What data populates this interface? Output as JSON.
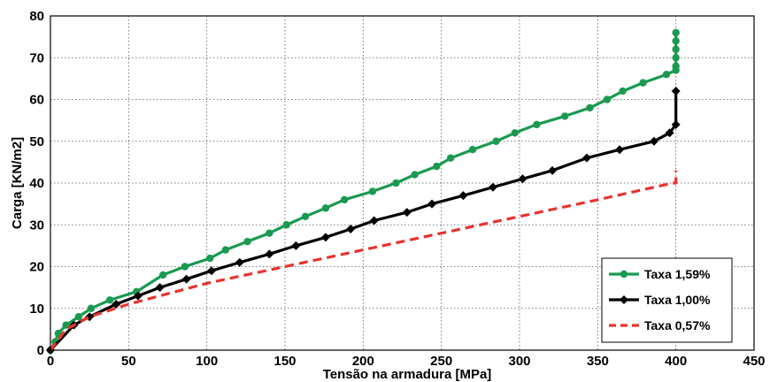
{
  "chart_data": {
    "type": "line",
    "xlabel": "Tensão na armadura [MPa]",
    "ylabel": "Carga [KN/m2]",
    "xlim": [
      0,
      450
    ],
    "ylim": [
      0,
      80
    ],
    "xticks": [
      0,
      50,
      100,
      150,
      200,
      250,
      300,
      350,
      400,
      450
    ],
    "yticks": [
      0,
      10,
      20,
      30,
      40,
      50,
      60,
      70,
      80
    ],
    "grid": true,
    "legend_position": "bottom-right",
    "series": [
      {
        "name": "Taxa 1,59%",
        "color": "#1a9a50",
        "style": "solid",
        "marker": "circle",
        "points": [
          [
            0,
            0
          ],
          [
            3,
            2
          ],
          [
            5,
            4
          ],
          [
            10,
            6
          ],
          [
            18,
            8
          ],
          [
            26,
            10
          ],
          [
            38,
            12
          ],
          [
            55,
            14
          ],
          [
            72,
            18
          ],
          [
            86,
            20
          ],
          [
            102,
            22
          ],
          [
            112,
            24
          ],
          [
            126,
            26
          ],
          [
            140,
            28
          ],
          [
            151,
            30
          ],
          [
            163,
            32
          ],
          [
            176,
            34
          ],
          [
            188,
            36
          ],
          [
            206,
            38
          ],
          [
            221,
            40
          ],
          [
            233,
            42
          ],
          [
            247,
            44
          ],
          [
            256,
            46
          ],
          [
            270,
            48
          ],
          [
            285,
            50
          ],
          [
            297,
            52
          ],
          [
            311,
            54
          ],
          [
            329,
            56
          ],
          [
            345,
            58
          ],
          [
            356,
            60
          ],
          [
            366,
            62
          ],
          [
            379,
            64
          ],
          [
            394,
            66
          ],
          [
            400,
            67
          ],
          [
            400,
            68
          ],
          [
            400,
            70
          ],
          [
            400,
            72
          ],
          [
            400,
            74
          ],
          [
            400,
            76
          ]
        ]
      },
      {
        "name": "Taxa 1,00%",
        "color": "#000000",
        "style": "solid",
        "marker": "diamond",
        "points": [
          [
            0,
            0
          ],
          [
            15,
            6
          ],
          [
            25,
            8
          ],
          [
            42,
            11
          ],
          [
            56,
            13
          ],
          [
            70,
            15
          ],
          [
            87,
            17
          ],
          [
            103,
            19
          ],
          [
            121,
            21
          ],
          [
            140,
            23
          ],
          [
            157,
            25
          ],
          [
            176,
            27
          ],
          [
            192,
            29
          ],
          [
            207,
            31
          ],
          [
            228,
            33
          ],
          [
            244,
            35
          ],
          [
            264,
            37
          ],
          [
            283,
            39
          ],
          [
            302,
            41
          ],
          [
            321,
            43
          ],
          [
            343,
            46
          ],
          [
            364,
            48
          ],
          [
            386,
            50
          ],
          [
            396,
            52
          ],
          [
            400,
            54
          ],
          [
            400,
            62
          ]
        ]
      },
      {
        "name": "Taxa 0,57%",
        "color": "#e8332e",
        "style": "dashed",
        "marker": "none",
        "points": [
          [
            0,
            0
          ],
          [
            10,
            5
          ],
          [
            25,
            8
          ],
          [
            50,
            11
          ],
          [
            100,
            16
          ],
          [
            150,
            20
          ],
          [
            200,
            24
          ],
          [
            250,
            28
          ],
          [
            300,
            32
          ],
          [
            350,
            36
          ],
          [
            398,
            40
          ],
          [
            400,
            40
          ],
          [
            400,
            43
          ]
        ]
      }
    ]
  }
}
